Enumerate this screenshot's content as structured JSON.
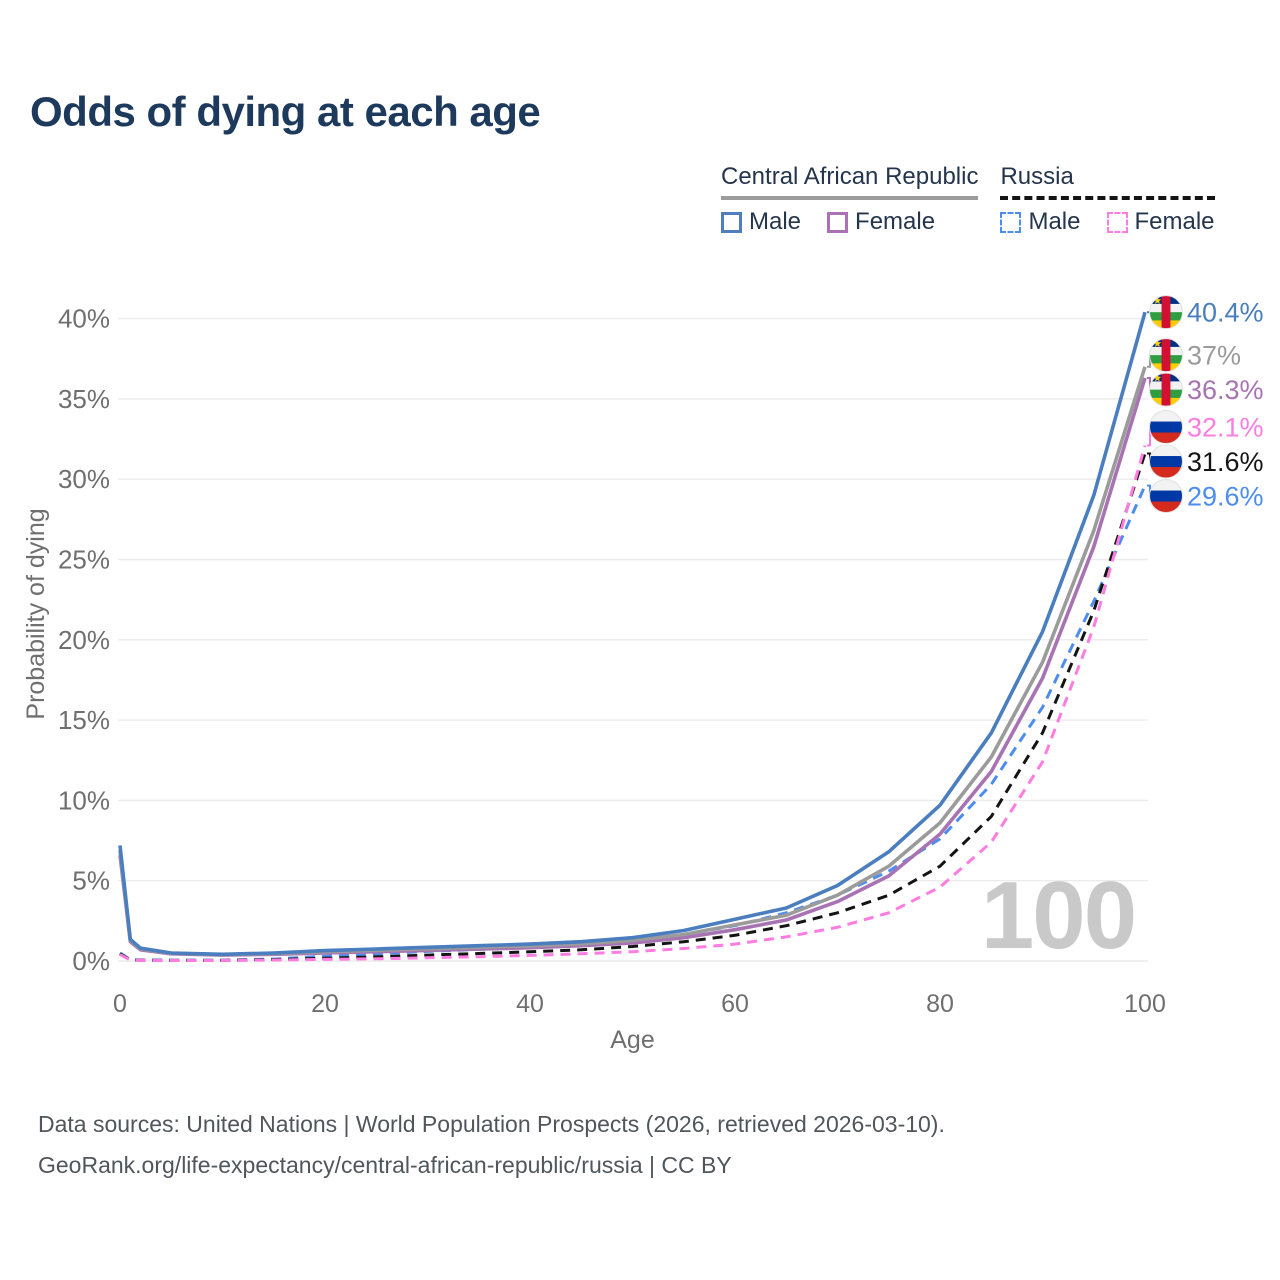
{
  "title": "Odds of dying at each age",
  "legend": {
    "groups": [
      {
        "label": "Central African Republic",
        "underline_style": "solid",
        "underline_color": "#9c9c9c",
        "items": [
          {
            "label": "Male",
            "color": "#507dbe",
            "dashed": false
          },
          {
            "label": "Female",
            "color": "#aa72b4",
            "dashed": false
          }
        ]
      },
      {
        "label": "Russia",
        "underline_style": "dashed",
        "underline_color": "#141414",
        "items": [
          {
            "label": "Male",
            "color": "#4d8cf0",
            "dashed": true
          },
          {
            "label": "Female",
            "color": "#ff7ce0",
            "dashed": true
          }
        ]
      }
    ]
  },
  "chart_data": {
    "type": "line",
    "title": "Odds of dying at each age",
    "xlabel": "Age",
    "ylabel": "Probability of dying",
    "xlim": [
      0,
      100
    ],
    "ylim": [
      0,
      40.5
    ],
    "xticks": [
      0,
      20,
      40,
      60,
      80,
      100
    ],
    "yticks": [
      0,
      5,
      10,
      15,
      20,
      25,
      30,
      35,
      40
    ],
    "ytick_suffix": "%",
    "grid": "horizontal",
    "legend_position": "top-right",
    "watermark": "100",
    "series": [
      {
        "id": "car-male",
        "name": "Central African Republic Male",
        "color": "#4a7ebf",
        "dash": false,
        "flag": "central-african-republic",
        "end_label": "40.4%",
        "points": [
          [
            0,
            7.2
          ],
          [
            1,
            1.35
          ],
          [
            2,
            0.8
          ],
          [
            5,
            0.5
          ],
          [
            10,
            0.42
          ],
          [
            15,
            0.5
          ],
          [
            20,
            0.65
          ],
          [
            25,
            0.75
          ],
          [
            30,
            0.85
          ],
          [
            35,
            0.95
          ],
          [
            40,
            1.05
          ],
          [
            45,
            1.2
          ],
          [
            50,
            1.45
          ],
          [
            55,
            1.9
          ],
          [
            60,
            2.6
          ],
          [
            65,
            3.3
          ],
          [
            70,
            4.7
          ],
          [
            75,
            6.8
          ],
          [
            80,
            9.7
          ],
          [
            85,
            14.2
          ],
          [
            90,
            20.5
          ],
          [
            95,
            29.0
          ],
          [
            100,
            40.4
          ]
        ]
      },
      {
        "id": "car-both",
        "name": "Central African Republic (both sexes)",
        "color": "#9b9b9b",
        "dash": false,
        "flag": "central-african-republic",
        "end_label": "37%",
        "points": [
          [
            0,
            6.9
          ],
          [
            1,
            1.28
          ],
          [
            2,
            0.75
          ],
          [
            5,
            0.48
          ],
          [
            10,
            0.4
          ],
          [
            15,
            0.46
          ],
          [
            20,
            0.58
          ],
          [
            25,
            0.67
          ],
          [
            30,
            0.76
          ],
          [
            35,
            0.85
          ],
          [
            40,
            0.94
          ],
          [
            45,
            1.07
          ],
          [
            50,
            1.28
          ],
          [
            55,
            1.65
          ],
          [
            60,
            2.25
          ],
          [
            65,
            2.85
          ],
          [
            70,
            4.1
          ],
          [
            75,
            5.9
          ],
          [
            80,
            8.6
          ],
          [
            85,
            12.7
          ],
          [
            90,
            18.6
          ],
          [
            95,
            26.8
          ],
          [
            100,
            37.0
          ]
        ]
      },
      {
        "id": "car-female",
        "name": "Central African Republic Female",
        "color": "#a873b3",
        "dash": false,
        "flag": "central-african-republic",
        "end_label": "36.3%",
        "points": [
          [
            0,
            6.6
          ],
          [
            1,
            1.2
          ],
          [
            2,
            0.7
          ],
          [
            5,
            0.45
          ],
          [
            10,
            0.37
          ],
          [
            15,
            0.42
          ],
          [
            20,
            0.5
          ],
          [
            25,
            0.58
          ],
          [
            30,
            0.66
          ],
          [
            35,
            0.74
          ],
          [
            40,
            0.83
          ],
          [
            45,
            0.95
          ],
          [
            50,
            1.12
          ],
          [
            55,
            1.45
          ],
          [
            60,
            1.95
          ],
          [
            65,
            2.55
          ],
          [
            70,
            3.7
          ],
          [
            75,
            5.3
          ],
          [
            80,
            7.9
          ],
          [
            85,
            11.8
          ],
          [
            90,
            17.6
          ],
          [
            95,
            25.8
          ],
          [
            100,
            36.3
          ]
        ]
      },
      {
        "id": "russia-female",
        "name": "Russia Female",
        "color": "#ff7ce0",
        "dash": true,
        "flag": "russia",
        "end_label": "32.1%",
        "points": [
          [
            0,
            0.4
          ],
          [
            1,
            0.06
          ],
          [
            2,
            0.04
          ],
          [
            5,
            0.03
          ],
          [
            10,
            0.03
          ],
          [
            15,
            0.06
          ],
          [
            20,
            0.1
          ],
          [
            25,
            0.14
          ],
          [
            30,
            0.2
          ],
          [
            35,
            0.27
          ],
          [
            40,
            0.35
          ],
          [
            45,
            0.45
          ],
          [
            50,
            0.58
          ],
          [
            55,
            0.78
          ],
          [
            60,
            1.05
          ],
          [
            65,
            1.5
          ],
          [
            70,
            2.1
          ],
          [
            75,
            3.0
          ],
          [
            80,
            4.6
          ],
          [
            85,
            7.4
          ],
          [
            90,
            12.4
          ],
          [
            95,
            20.8
          ],
          [
            100,
            32.1
          ]
        ]
      },
      {
        "id": "russia-both",
        "name": "Russia (both sexes)",
        "color": "#141414",
        "dash": true,
        "flag": "russia",
        "end_label": "31.6%",
        "points": [
          [
            0,
            0.45
          ],
          [
            1,
            0.07
          ],
          [
            2,
            0.05
          ],
          [
            5,
            0.04
          ],
          [
            10,
            0.04
          ],
          [
            15,
            0.09
          ],
          [
            20,
            0.17
          ],
          [
            25,
            0.26
          ],
          [
            30,
            0.37
          ],
          [
            35,
            0.47
          ],
          [
            40,
            0.57
          ],
          [
            45,
            0.7
          ],
          [
            50,
            0.9
          ],
          [
            55,
            1.2
          ],
          [
            60,
            1.6
          ],
          [
            65,
            2.2
          ],
          [
            70,
            3.0
          ],
          [
            75,
            4.1
          ],
          [
            80,
            5.9
          ],
          [
            85,
            9.0
          ],
          [
            90,
            14.2
          ],
          [
            95,
            21.8
          ],
          [
            100,
            31.6
          ]
        ]
      },
      {
        "id": "russia-male",
        "name": "Russia Male",
        "color": "#4d8cf0",
        "dash": true,
        "flag": "russia",
        "end_label": "29.6%",
        "points": [
          [
            0,
            0.5
          ],
          [
            1,
            0.08
          ],
          [
            2,
            0.06
          ],
          [
            5,
            0.05
          ],
          [
            10,
            0.05
          ],
          [
            15,
            0.12
          ],
          [
            20,
            0.3
          ],
          [
            25,
            0.45
          ],
          [
            30,
            0.6
          ],
          [
            35,
            0.72
          ],
          [
            40,
            0.85
          ],
          [
            45,
            1.0
          ],
          [
            50,
            1.25
          ],
          [
            55,
            1.65
          ],
          [
            60,
            2.2
          ],
          [
            65,
            3.0
          ],
          [
            70,
            4.1
          ],
          [
            75,
            5.6
          ],
          [
            80,
            7.6
          ],
          [
            85,
            11.0
          ],
          [
            90,
            15.8
          ],
          [
            95,
            22.4
          ],
          [
            100,
            29.6
          ]
        ]
      }
    ]
  },
  "footer": {
    "line1": "Data sources: United Nations | World Population Prospects (2026, retrieved 2026-03-10).",
    "line2": "GeoRank.org/life-expectancy/central-african-republic/russia | CC BY"
  }
}
